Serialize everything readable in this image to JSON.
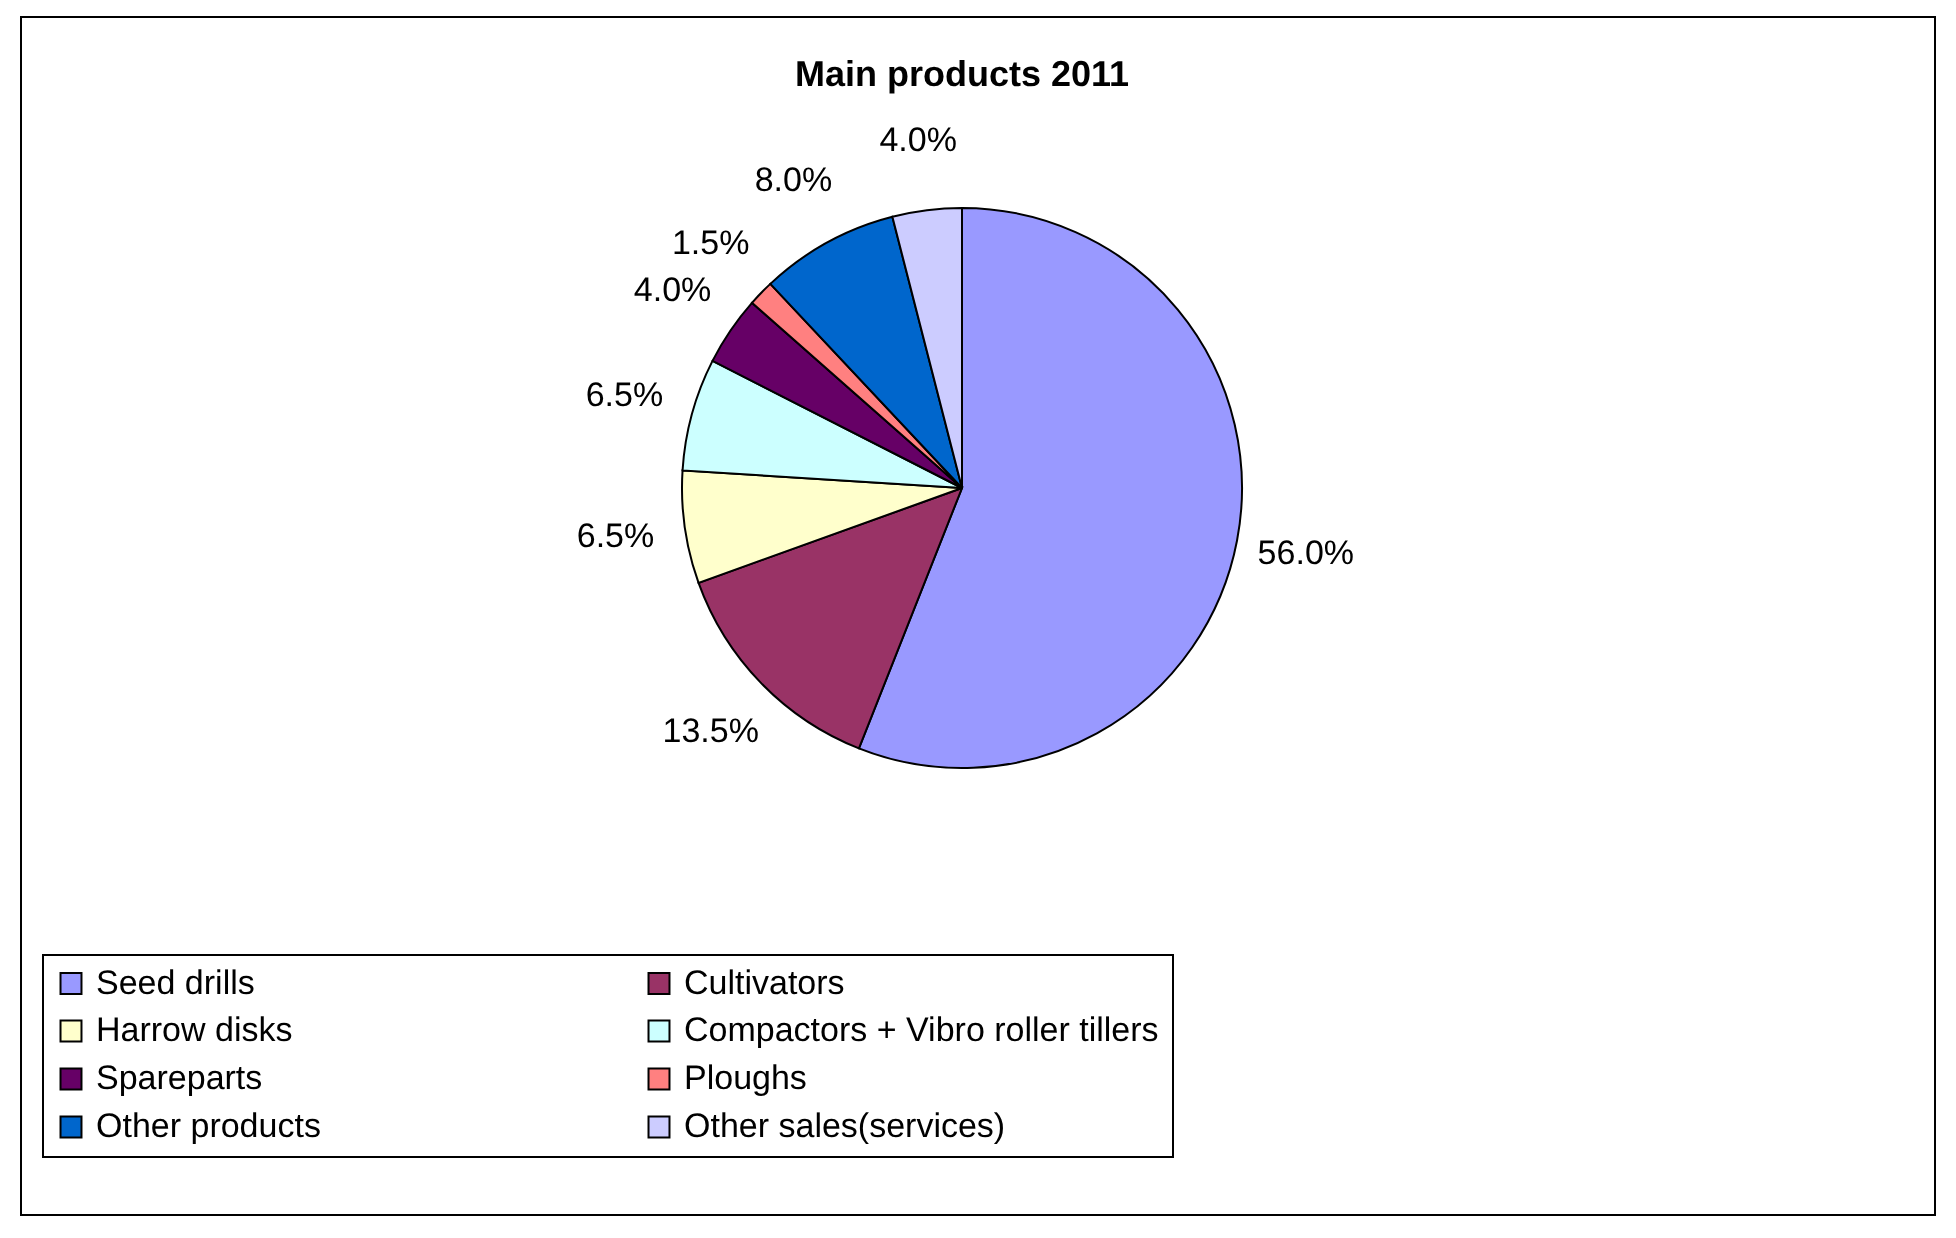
{
  "chart_data": {
    "type": "pie",
    "title": "Main products 2011",
    "categories": [
      "Seed drills",
      "Cultivators",
      "Harrow disks",
      "Compactors + Vibro roller tillers",
      "Spareparts",
      "Ploughs",
      "Other products",
      "Other sales(services)"
    ],
    "values": [
      56.0,
      13.5,
      6.5,
      6.5,
      4.0,
      1.5,
      8.0,
      4.0
    ],
    "value_labels": [
      "56.0%",
      "13.5%",
      "6.5%",
      "6.5%",
      "4.0%",
      "1.5%",
      "8.0%",
      "4.0%"
    ],
    "colors": [
      "#9999ff",
      "#993366",
      "#ffffcc",
      "#ccffff",
      "#660066",
      "#ff8080",
      "#0066cc",
      "#ccccff"
    ],
    "legend": "bottom"
  }
}
